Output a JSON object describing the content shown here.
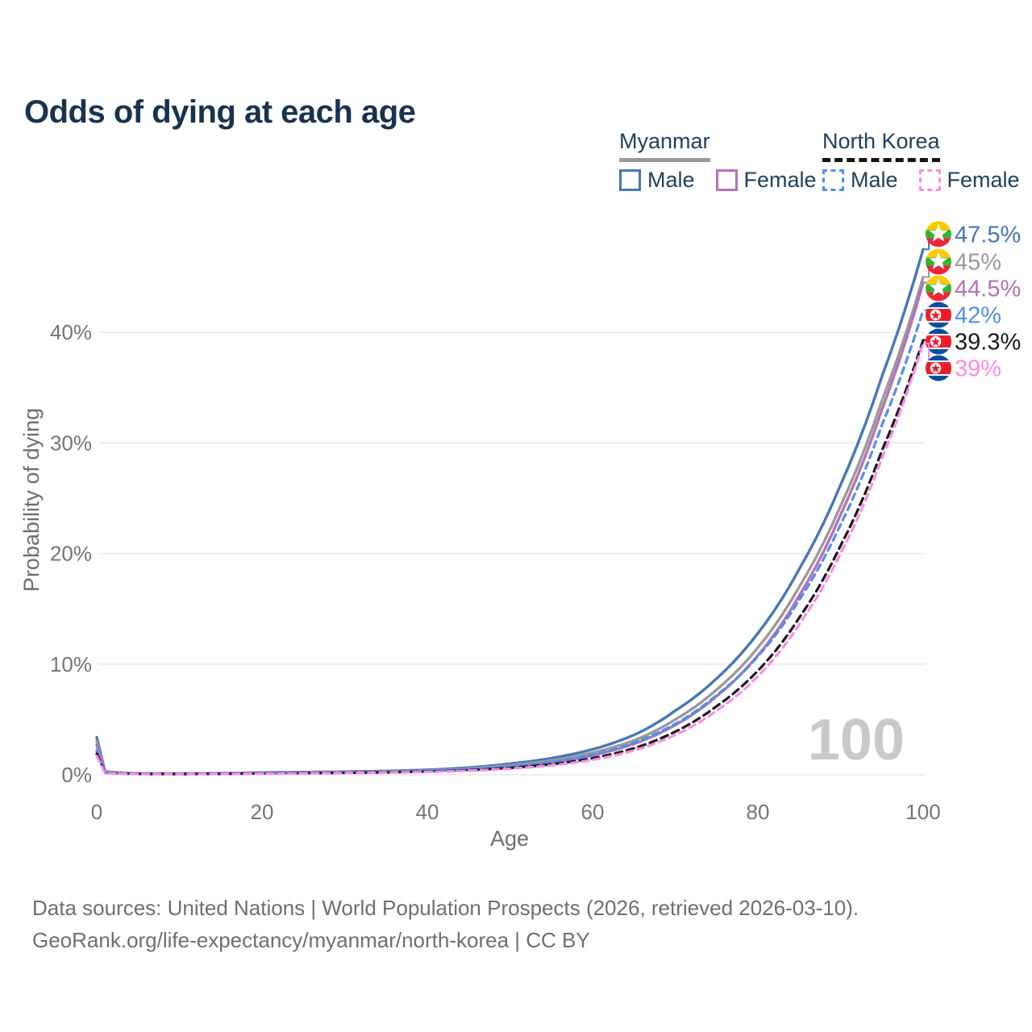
{
  "page": {
    "title": "Odds of dying at each age",
    "background": "#ffffff"
  },
  "legend": {
    "groups": [
      {
        "label": "Myanmar",
        "line_style": "solid",
        "line_color": "#9a9a9a",
        "items": [
          {
            "label": "Male",
            "color": "#4677b8",
            "style": "solid"
          },
          {
            "label": "Female",
            "color": "#b573b5",
            "style": "solid"
          }
        ]
      },
      {
        "label": "North Korea",
        "line_style": "dashed",
        "line_color": "#141414",
        "items": [
          {
            "label": "Male",
            "color": "#4d90f0",
            "style": "dashed"
          },
          {
            "label": "Female",
            "color": "#fb8ce4",
            "style": "dashed"
          }
        ]
      }
    ]
  },
  "chart_data": {
    "type": "line",
    "title": "Odds of dying at each age",
    "xlabel": "Age",
    "ylabel": "Probability of dying",
    "xlim": [
      0,
      100
    ],
    "ylim": [
      0,
      49
    ],
    "grid": "horizontal",
    "legend_position": "top-right",
    "watermark": "100",
    "xticks": {
      "values": [
        0,
        20,
        40,
        60,
        80,
        100
      ],
      "labels": [
        "0",
        "20",
        "40",
        "60",
        "80",
        "100"
      ]
    },
    "yticks": {
      "values": [
        0,
        10,
        20,
        30,
        40
      ],
      "labels": [
        "0%",
        "10%",
        "20%",
        "30%",
        "40%"
      ]
    },
    "flags": {
      "myanmar": {
        "yellow": "#FECB00",
        "green": "#34B233",
        "red": "#EA2839",
        "white": "#FFFFFF"
      },
      "north_korea": {
        "blue": "#024FA2",
        "red": "#ED1C27",
        "white": "#FFFFFF"
      }
    },
    "series": [
      {
        "id": "myanmar-male",
        "country": "Myanmar",
        "sex": "Male",
        "color": "#4677b8",
        "dash": null,
        "end_label": "47.5%",
        "end_value": 47.5,
        "flag": "myanmar",
        "points": [
          [
            0,
            3.4
          ],
          [
            1,
            0.3
          ],
          [
            5,
            0.12
          ],
          [
            10,
            0.1
          ],
          [
            15,
            0.14
          ],
          [
            20,
            0.2
          ],
          [
            25,
            0.24
          ],
          [
            30,
            0.28
          ],
          [
            35,
            0.34
          ],
          [
            40,
            0.45
          ],
          [
            45,
            0.65
          ],
          [
            50,
            1.0
          ],
          [
            55,
            1.5
          ],
          [
            60,
            2.3
          ],
          [
            65,
            3.6
          ],
          [
            70,
            5.8
          ],
          [
            75,
            8.7
          ],
          [
            80,
            12.8
          ],
          [
            85,
            18.6
          ],
          [
            90,
            26.2
          ],
          [
            95,
            36.0
          ],
          [
            100,
            47.5
          ]
        ]
      },
      {
        "id": "myanmar-both",
        "country": "Myanmar",
        "sex": "Both sexes",
        "color": "#9a9a9a",
        "dash": null,
        "end_label": "45%",
        "end_value": 45,
        "flag": "myanmar",
        "points": [
          [
            0,
            3.0
          ],
          [
            1,
            0.27
          ],
          [
            5,
            0.11
          ],
          [
            10,
            0.09
          ],
          [
            15,
            0.12
          ],
          [
            20,
            0.17
          ],
          [
            25,
            0.2
          ],
          [
            30,
            0.24
          ],
          [
            35,
            0.29
          ],
          [
            40,
            0.38
          ],
          [
            45,
            0.55
          ],
          [
            50,
            0.85
          ],
          [
            55,
            1.3
          ],
          [
            60,
            2.0
          ],
          [
            65,
            3.1
          ],
          [
            70,
            5.0
          ],
          [
            75,
            7.7
          ],
          [
            80,
            11.5
          ],
          [
            85,
            17.0
          ],
          [
            90,
            24.3
          ],
          [
            95,
            33.8
          ],
          [
            100,
            45.0
          ]
        ]
      },
      {
        "id": "myanmar-female",
        "country": "Myanmar",
        "sex": "Female",
        "color": "#b573b5",
        "dash": null,
        "end_label": "44.5%",
        "end_value": 44.5,
        "flag": "myanmar",
        "points": [
          [
            0,
            2.7
          ],
          [
            1,
            0.24
          ],
          [
            5,
            0.1
          ],
          [
            10,
            0.08
          ],
          [
            15,
            0.1
          ],
          [
            20,
            0.14
          ],
          [
            25,
            0.17
          ],
          [
            30,
            0.2
          ],
          [
            35,
            0.25
          ],
          [
            40,
            0.33
          ],
          [
            45,
            0.47
          ],
          [
            50,
            0.72
          ],
          [
            55,
            1.1
          ],
          [
            60,
            1.75
          ],
          [
            65,
            2.8
          ],
          [
            70,
            4.5
          ],
          [
            75,
            7.1
          ],
          [
            80,
            10.8
          ],
          [
            85,
            16.2
          ],
          [
            90,
            23.5
          ],
          [
            95,
            33.0
          ],
          [
            100,
            44.5
          ]
        ]
      },
      {
        "id": "north-korea-male",
        "country": "North Korea",
        "sex": "Male",
        "color": "#4d90f0",
        "dash": "8 6",
        "end_label": "42%",
        "end_value": 42,
        "flag": "north_korea",
        "points": [
          [
            0,
            2.2
          ],
          [
            1,
            0.2
          ],
          [
            5,
            0.09
          ],
          [
            10,
            0.08
          ],
          [
            15,
            0.11
          ],
          [
            20,
            0.15
          ],
          [
            25,
            0.18
          ],
          [
            30,
            0.21
          ],
          [
            35,
            0.26
          ],
          [
            40,
            0.35
          ],
          [
            45,
            0.5
          ],
          [
            50,
            0.75
          ],
          [
            55,
            1.15
          ],
          [
            60,
            1.8
          ],
          [
            65,
            2.9
          ],
          [
            70,
            4.6
          ],
          [
            75,
            7.2
          ],
          [
            80,
            10.7
          ],
          [
            85,
            15.8
          ],
          [
            90,
            22.6
          ],
          [
            95,
            31.6
          ],
          [
            100,
            42.0
          ]
        ]
      },
      {
        "id": "north-korea-both",
        "country": "North Korea",
        "sex": "Both sexes",
        "color": "#1a1a1a",
        "dash": "9 6",
        "end_label": "39.3%",
        "end_value": 39.3,
        "flag": "north_korea",
        "points": [
          [
            0,
            1.9
          ],
          [
            1,
            0.18
          ],
          [
            5,
            0.08
          ],
          [
            10,
            0.07
          ],
          [
            15,
            0.09
          ],
          [
            20,
            0.12
          ],
          [
            25,
            0.15
          ],
          [
            30,
            0.18
          ],
          [
            35,
            0.22
          ],
          [
            40,
            0.29
          ],
          [
            45,
            0.42
          ],
          [
            50,
            0.62
          ],
          [
            55,
            0.95
          ],
          [
            60,
            1.5
          ],
          [
            65,
            2.4
          ],
          [
            70,
            3.9
          ],
          [
            75,
            6.2
          ],
          [
            80,
            9.4
          ],
          [
            85,
            14.2
          ],
          [
            90,
            20.7
          ],
          [
            95,
            29.3
          ],
          [
            100,
            39.3
          ]
        ]
      },
      {
        "id": "north-korea-female",
        "country": "North Korea",
        "sex": "Female",
        "color": "#fb8ce4",
        "dash": "8 6",
        "end_label": "39%",
        "end_value": 39,
        "flag": "north_korea",
        "points": [
          [
            0,
            1.7
          ],
          [
            1,
            0.16
          ],
          [
            5,
            0.07
          ],
          [
            10,
            0.06
          ],
          [
            15,
            0.08
          ],
          [
            20,
            0.1
          ],
          [
            25,
            0.13
          ],
          [
            30,
            0.16
          ],
          [
            35,
            0.2
          ],
          [
            40,
            0.26
          ],
          [
            45,
            0.37
          ],
          [
            50,
            0.55
          ],
          [
            55,
            0.85
          ],
          [
            60,
            1.35
          ],
          [
            65,
            2.2
          ],
          [
            70,
            3.6
          ],
          [
            75,
            5.8
          ],
          [
            80,
            8.9
          ],
          [
            85,
            13.6
          ],
          [
            90,
            20.0
          ],
          [
            95,
            28.6
          ],
          [
            100,
            39.0
          ]
        ]
      }
    ]
  },
  "footer": {
    "line1": "Data sources: United Nations | World Population Prospects (2026, retrieved 2026-03-10).",
    "line2": "GeoRank.org/life-expectancy/myanmar/north-korea | CC BY"
  }
}
